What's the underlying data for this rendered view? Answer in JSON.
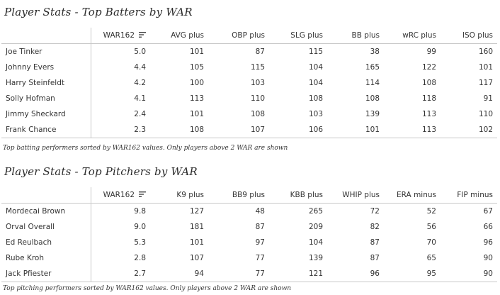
{
  "batters": {
    "title": "Player Stats - Top Batters by WAR",
    "columns": [
      "WAR162",
      "AVG plus",
      "OBP plus",
      "SLG plus",
      "BB plus",
      "wRC plus",
      "ISO plus"
    ],
    "sort_icon": "sort-descending-icon",
    "rows": [
      {
        "name": "Joe Tinker",
        "values": [
          "5.0",
          "101",
          "87",
          "115",
          "38",
          "99",
          "160"
        ]
      },
      {
        "name": "Johnny Evers",
        "values": [
          "4.4",
          "105",
          "115",
          "104",
          "165",
          "122",
          "101"
        ]
      },
      {
        "name": "Harry Steinfeldt",
        "values": [
          "4.2",
          "100",
          "103",
          "104",
          "114",
          "108",
          "117"
        ]
      },
      {
        "name": "Solly Hofman",
        "values": [
          "4.1",
          "113",
          "110",
          "108",
          "108",
          "118",
          "91"
        ]
      },
      {
        "name": "Jimmy Sheckard",
        "values": [
          "2.4",
          "101",
          "108",
          "103",
          "139",
          "113",
          "110"
        ]
      },
      {
        "name": "Frank Chance",
        "values": [
          "2.3",
          "108",
          "107",
          "106",
          "101",
          "113",
          "102"
        ]
      }
    ],
    "caption": "Top batting performers sorted by WAR162 values. Only players above 2 WAR are shown"
  },
  "pitchers": {
    "title": "Player Stats - Top Pitchers by WAR",
    "columns": [
      "WAR162",
      "K9 plus",
      "BB9 plus",
      "KBB plus",
      "WHIP plus",
      "ERA minus",
      "FIP minus"
    ],
    "sort_icon": "sort-descending-icon",
    "rows": [
      {
        "name": "Mordecai Brown",
        "values": [
          "9.8",
          "127",
          "48",
          "265",
          "72",
          "52",
          "67"
        ]
      },
      {
        "name": "Orval Overall",
        "values": [
          "9.0",
          "181",
          "87",
          "209",
          "82",
          "56",
          "66"
        ]
      },
      {
        "name": "Ed Reulbach",
        "values": [
          "5.3",
          "101",
          "97",
          "104",
          "87",
          "70",
          "96"
        ]
      },
      {
        "name": "Rube Kroh",
        "values": [
          "2.8",
          "107",
          "77",
          "139",
          "87",
          "65",
          "90"
        ]
      },
      {
        "name": "Jack Pfiester",
        "values": [
          "2.7",
          "94",
          "77",
          "121",
          "96",
          "95",
          "90"
        ]
      }
    ],
    "caption": "Top pitching performers sorted by WAR162 values. Only players above 2 WAR are shown"
  }
}
